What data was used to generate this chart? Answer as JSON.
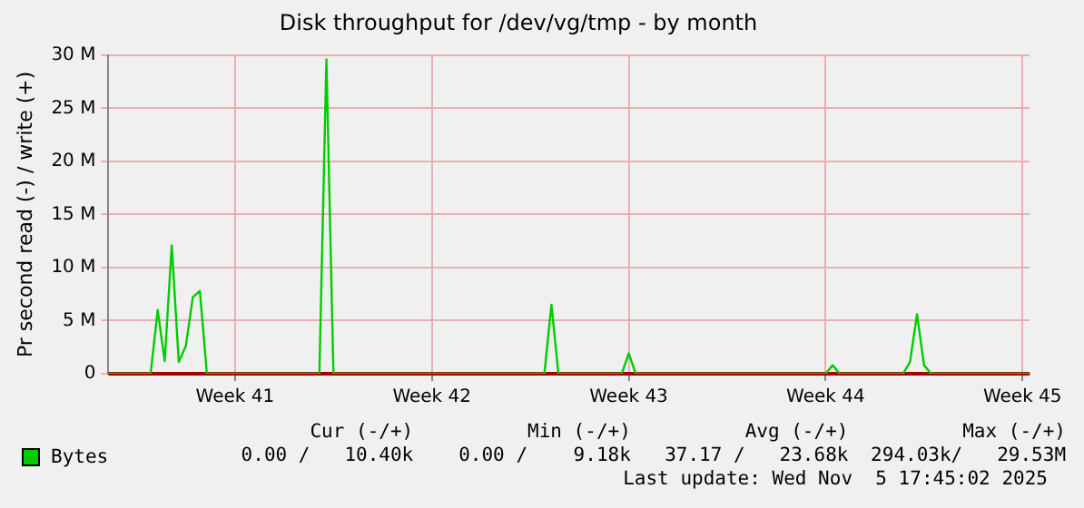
{
  "chart_data": {
    "type": "line",
    "title": "Disk throughput for /dev/vg/tmp - by month",
    "ylabel": "Pr second read (-) / write (+)",
    "categories": [
      null,
      null,
      null,
      null,
      null,
      null,
      null,
      null,
      null,
      null,
      null,
      null,
      null,
      null,
      null,
      null,
      null,
      null,
      "Week 41",
      null,
      null,
      null,
      null,
      null,
      null,
      null,
      null,
      null,
      null,
      null,
      null,
      null,
      null,
      null,
      null,
      null,
      null,
      null,
      null,
      null,
      null,
      null,
      null,
      null,
      null,
      null,
      "Week 42",
      null,
      null,
      null,
      null,
      null,
      null,
      null,
      null,
      null,
      null,
      null,
      null,
      null,
      null,
      null,
      null,
      null,
      null,
      null,
      null,
      null,
      null,
      null,
      null,
      null,
      null,
      null,
      "Week 43",
      null,
      null,
      null,
      null,
      null,
      null,
      null,
      null,
      null,
      null,
      null,
      null,
      null,
      null,
      null,
      null,
      null,
      null,
      null,
      null,
      null,
      null,
      null,
      null,
      null,
      null,
      null,
      "Week 44",
      null,
      null,
      null,
      null,
      null,
      null,
      null,
      null,
      null,
      null,
      null,
      null,
      null,
      null,
      null,
      null,
      null,
      null,
      null,
      null,
      null,
      null,
      null,
      null,
      null,
      null,
      null,
      "Week 45",
      null
    ],
    "ylim": [
      0,
      30
    ],
    "yticks": [
      0,
      {
        "value": 5,
        "label": "5 M"
      },
      {
        "value": 10,
        "label": "10 M"
      },
      {
        "value": 15,
        "label": "15 M"
      },
      {
        "value": 20,
        "label": "20 M"
      },
      {
        "value": 25,
        "label": "25 M"
      },
      {
        "value": 30,
        "label": "30 M"
      }
    ],
    "grid": true,
    "legend": "bottom",
    "marker": "none",
    "line_style": "solid",
    "series": [
      {
        "name": "Bytes",
        "color": "#00cc00",
        "values": [
          0,
          0,
          0,
          0,
          0,
          0,
          0,
          6.0,
          1.2,
          12.1,
          1.1,
          2.6,
          7.2,
          7.8,
          0,
          0,
          0,
          0,
          0,
          0,
          0,
          0,
          0,
          0,
          0,
          0,
          0,
          0,
          0,
          0,
          0,
          29.6,
          0,
          0,
          0,
          0,
          0,
          0,
          0,
          0,
          0,
          0,
          0,
          0,
          0,
          0,
          0,
          0,
          0,
          0,
          0,
          0,
          0,
          0,
          0,
          0,
          0,
          0,
          0,
          0,
          0,
          0,
          0,
          6.5,
          0,
          0,
          0,
          0,
          0,
          0,
          0,
          0,
          0,
          0,
          1.9,
          0,
          0,
          0,
          0,
          0,
          0,
          0,
          0,
          0,
          0,
          0,
          0,
          0,
          0,
          0,
          0,
          0,
          0,
          0,
          0,
          0,
          0,
          0,
          0,
          0,
          0,
          0,
          0,
          0.8,
          0,
          0,
          0,
          0,
          0,
          0,
          0,
          0,
          0,
          0,
          1.1,
          5.6,
          0.8,
          0,
          0,
          0,
          0,
          0,
          0,
          0,
          0,
          0,
          0,
          0,
          0,
          0,
          0,
          0
        ]
      }
    ],
    "annotations": [
      "Cur (-/+)",
      "Min (-/+)",
      "Avg (-/+)",
      "Max (-/+)",
      "0.00 /   10.40k",
      "0.00 /    9.18k",
      "37.17 /   23.68k",
      "294.03k/   29.53M",
      "Last update: Wed Nov  5 17:45:02 2025"
    ]
  }
}
